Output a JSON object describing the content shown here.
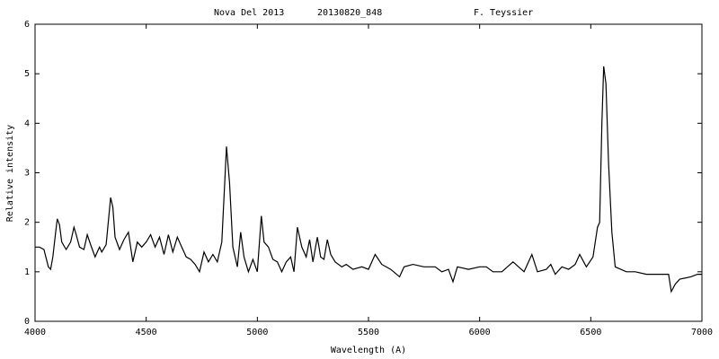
{
  "chart_data": {
    "type": "line",
    "title_parts": [
      "Nova Del 2013",
      "20130820_848",
      "F. Teyssier"
    ],
    "x_label": "Wavelength (A)",
    "y_label": "Relative intensity",
    "color": "#000000",
    "xlim": [
      4000,
      7000
    ],
    "xticks": [
      4000,
      4500,
      5000,
      5500,
      6000,
      6500,
      7000
    ],
    "ylim": [
      0,
      6
    ],
    "yticks": [
      0,
      1,
      2,
      3,
      4,
      5,
      6
    ],
    "x": [
      4000,
      4020,
      4040,
      4060,
      4070,
      4080,
      4090,
      4100,
      4110,
      4120,
      4140,
      4160,
      4175,
      4185,
      4200,
      4220,
      4235,
      4250,
      4270,
      4290,
      4300,
      4320,
      4340,
      4350,
      4360,
      4380,
      4400,
      4420,
      4440,
      4460,
      4480,
      4500,
      4520,
      4540,
      4560,
      4580,
      4600,
      4620,
      4640,
      4660,
      4680,
      4700,
      4720,
      4740,
      4760,
      4780,
      4800,
      4820,
      4840,
      4861,
      4875,
      4890,
      4910,
      4925,
      4940,
      4960,
      4980,
      5000,
      5018,
      5030,
      5050,
      5070,
      5090,
      5110,
      5130,
      5150,
      5165,
      5180,
      5200,
      5220,
      5235,
      5250,
      5270,
      5285,
      5300,
      5315,
      5330,
      5350,
      5380,
      5400,
      5430,
      5470,
      5500,
      5530,
      5560,
      5600,
      5640,
      5660,
      5700,
      5750,
      5800,
      5830,
      5860,
      5880,
      5900,
      5950,
      6000,
      6030,
      6060,
      6100,
      6150,
      6200,
      6235,
      6260,
      6300,
      6320,
      6340,
      6370,
      6400,
      6430,
      6450,
      6480,
      6510,
      6530,
      6540,
      6550,
      6558,
      6568,
      6580,
      6595,
      6610,
      6660,
      6700,
      6750,
      6800,
      6850,
      6862,
      6880,
      6900,
      6950,
      6980,
      7000
    ],
    "values": [
      1.5,
      1.5,
      1.45,
      1.1,
      1.05,
      1.3,
      1.7,
      2.07,
      1.95,
      1.6,
      1.45,
      1.6,
      1.9,
      1.75,
      1.5,
      1.45,
      1.75,
      1.55,
      1.3,
      1.5,
      1.4,
      1.55,
      2.5,
      2.3,
      1.7,
      1.45,
      1.65,
      1.8,
      1.2,
      1.6,
      1.5,
      1.6,
      1.75,
      1.5,
      1.7,
      1.35,
      1.75,
      1.4,
      1.7,
      1.5,
      1.3,
      1.25,
      1.15,
      1.0,
      1.4,
      1.2,
      1.35,
      1.2,
      1.6,
      3.53,
      2.8,
      1.5,
      1.1,
      1.8,
      1.3,
      1.0,
      1.25,
      1.0,
      2.13,
      1.6,
      1.5,
      1.25,
      1.2,
      1.0,
      1.2,
      1.3,
      1.0,
      1.9,
      1.5,
      1.3,
      1.65,
      1.2,
      1.7,
      1.3,
      1.25,
      1.65,
      1.35,
      1.2,
      1.1,
      1.15,
      1.05,
      1.1,
      1.05,
      1.35,
      1.15,
      1.05,
      0.9,
      1.1,
      1.15,
      1.1,
      1.1,
      1.0,
      1.05,
      0.8,
      1.1,
      1.05,
      1.1,
      1.1,
      1.0,
      1.0,
      1.2,
      1.0,
      1.35,
      1.0,
      1.05,
      1.15,
      0.95,
      1.1,
      1.05,
      1.15,
      1.35,
      1.1,
      1.3,
      1.9,
      2.0,
      4.0,
      5.15,
      4.8,
      3.2,
      1.8,
      1.1,
      1.0,
      1.0,
      0.95,
      0.95,
      0.95,
      0.6,
      0.75,
      0.85,
      0.9,
      0.95,
      0.95
    ]
  }
}
